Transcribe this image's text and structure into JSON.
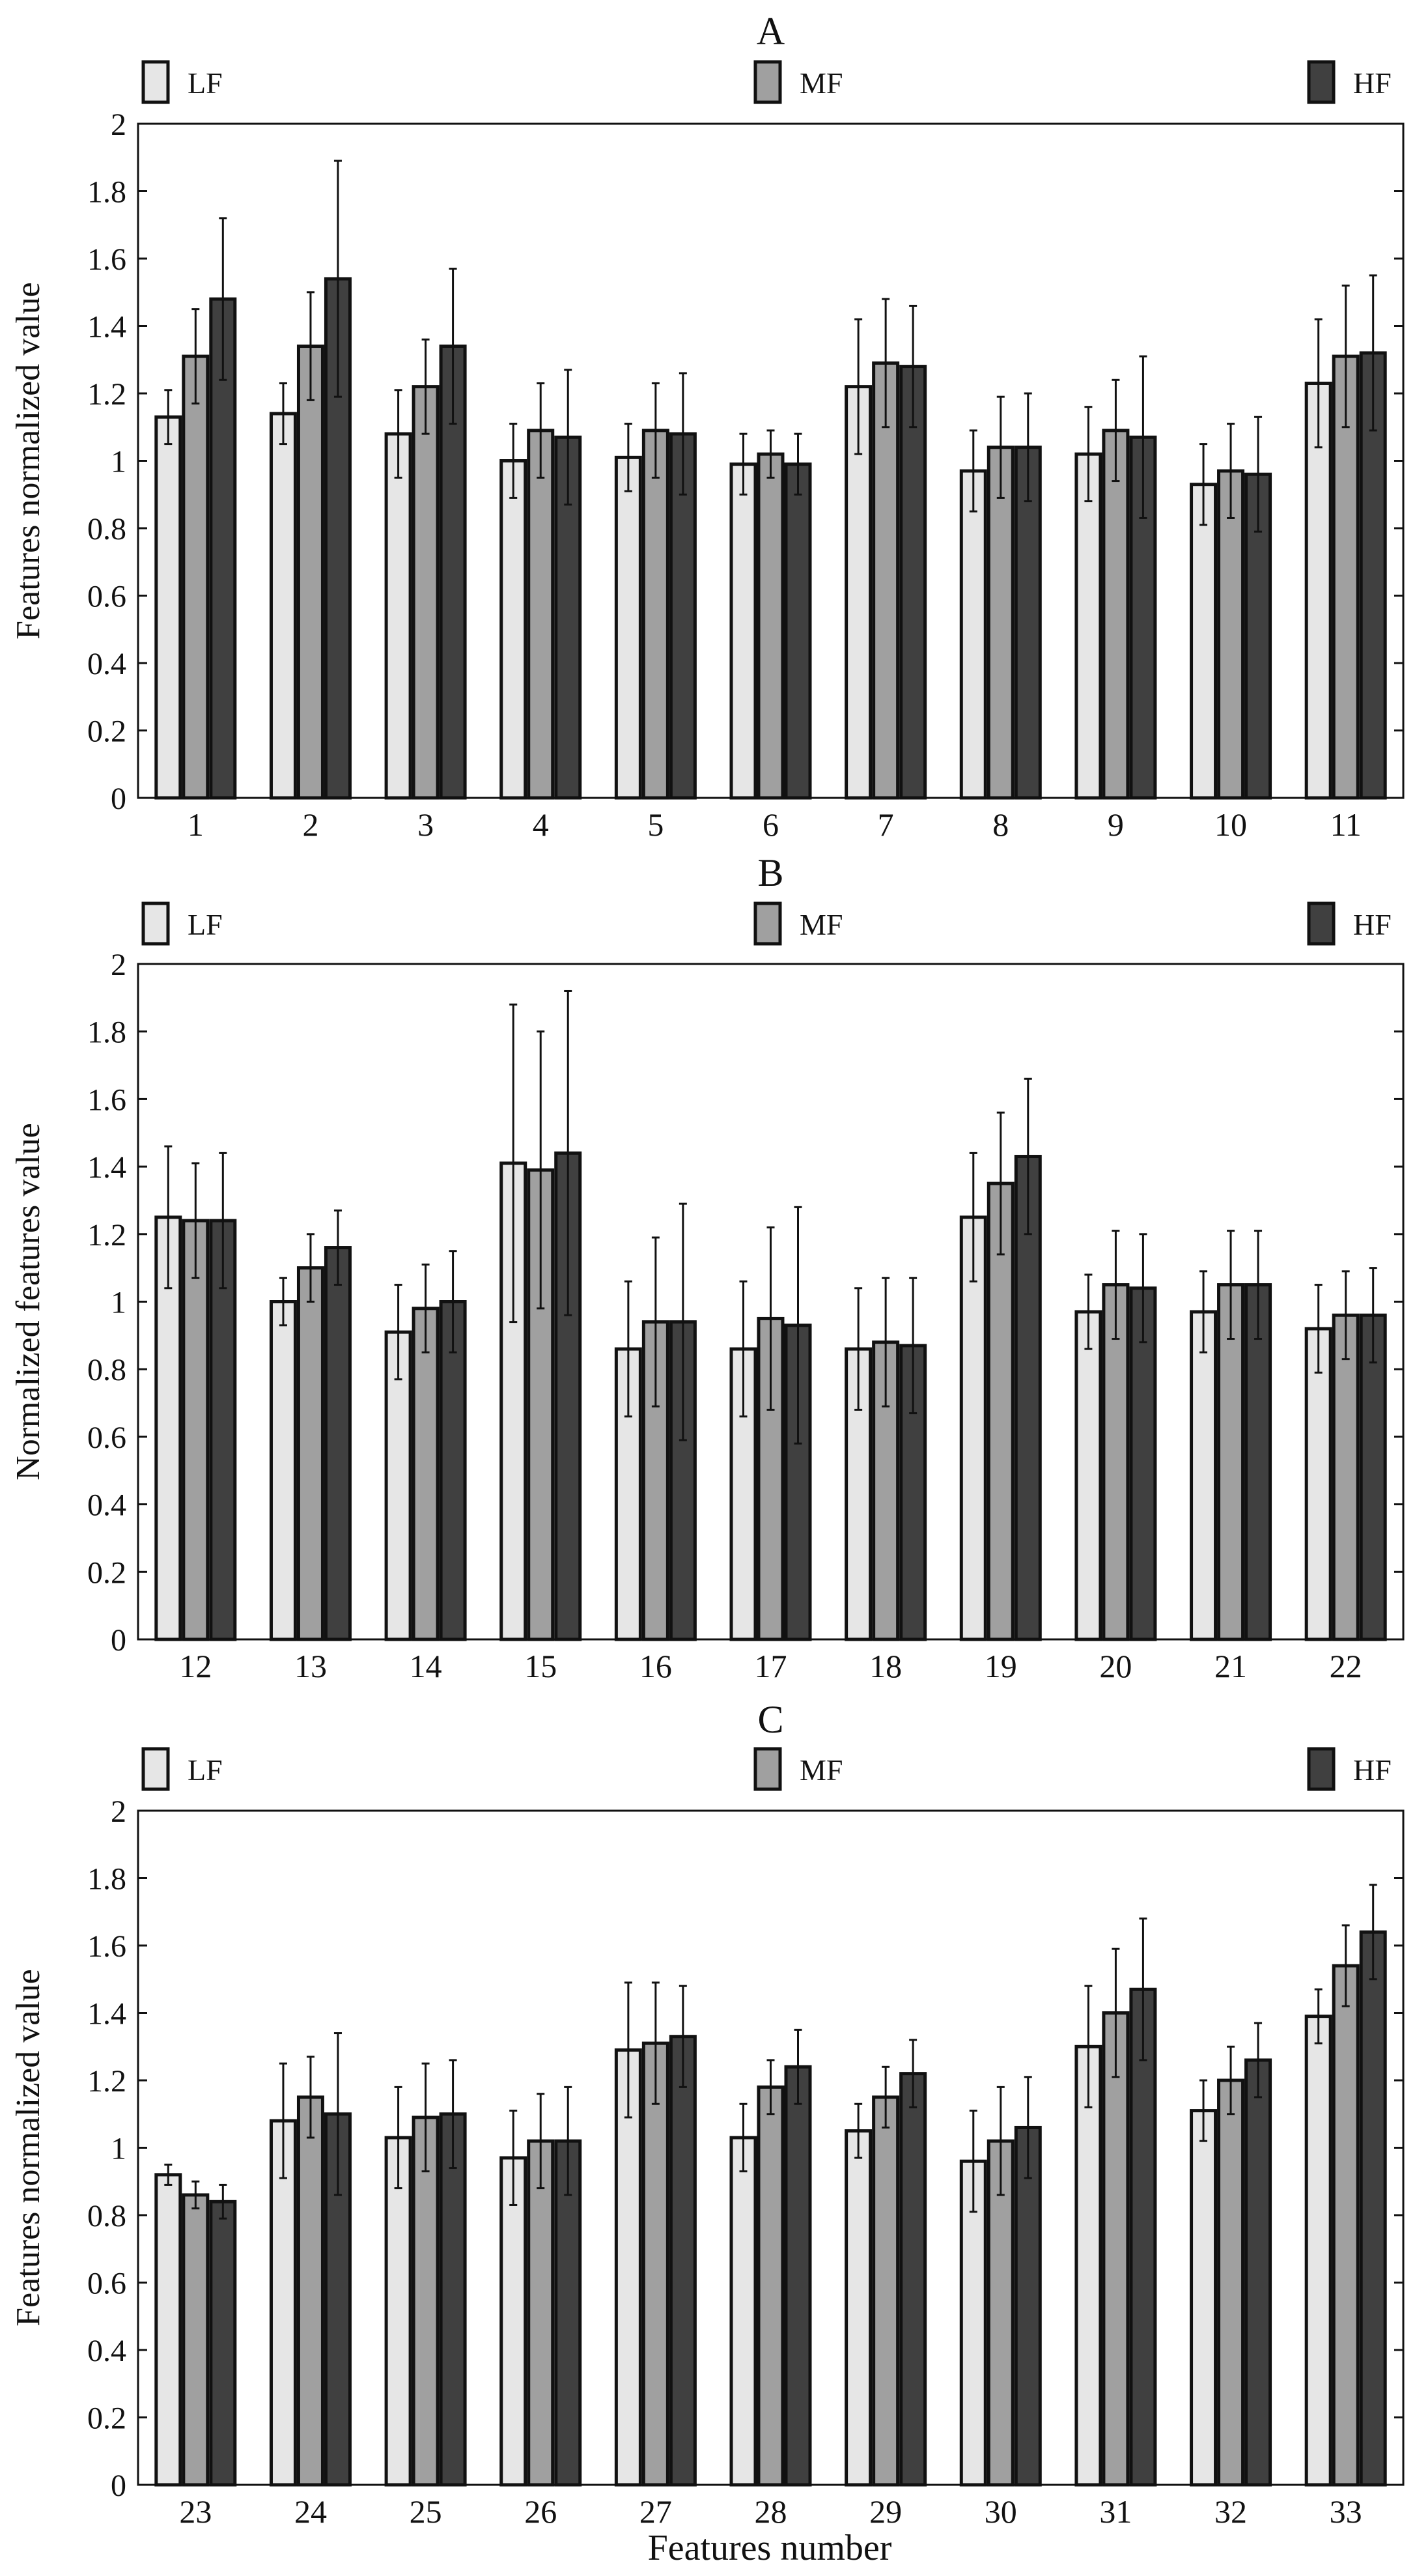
{
  "colors": {
    "LF": "#e6e6e6",
    "MF": "#a0a0a0",
    "HF": "#404040",
    "stroke": "#111111"
  },
  "xlabel_bottom": "Features number",
  "chart_data": [
    {
      "type": "bar",
      "title": "A",
      "ylabel": "Features normalized value",
      "ylim": [
        0,
        2
      ],
      "yticks": [
        "0",
        "0.2",
        "0.4",
        "0.6",
        "0.8",
        "1",
        "1.2",
        "1.4",
        "1.6",
        "1.8",
        "2"
      ],
      "categories": [
        "1",
        "2",
        "3",
        "4",
        "5",
        "6",
        "7",
        "8",
        "9",
        "10",
        "11"
      ],
      "series": [
        {
          "name": "LF",
          "values": [
            1.13,
            1.14,
            1.08,
            1.0,
            1.01,
            0.99,
            1.22,
            0.97,
            1.02,
            0.93,
            1.23
          ],
          "errors": [
            0.08,
            0.09,
            0.13,
            0.11,
            0.1,
            0.09,
            0.2,
            0.12,
            0.14,
            0.12,
            0.19
          ]
        },
        {
          "name": "MF",
          "values": [
            1.31,
            1.34,
            1.22,
            1.09,
            1.09,
            1.02,
            1.29,
            1.04,
            1.09,
            0.97,
            1.31
          ],
          "errors": [
            0.14,
            0.16,
            0.14,
            0.14,
            0.14,
            0.07,
            0.19,
            0.15,
            0.15,
            0.14,
            0.21
          ]
        },
        {
          "name": "HF",
          "values": [
            1.48,
            1.54,
            1.34,
            1.07,
            1.08,
            0.99,
            1.28,
            1.04,
            1.07,
            0.96,
            1.32
          ],
          "errors": [
            0.24,
            0.35,
            0.23,
            0.2,
            0.18,
            0.09,
            0.18,
            0.16,
            0.24,
            0.17,
            0.23
          ]
        }
      ],
      "legend": [
        "LF",
        "MF",
        "HF"
      ]
    },
    {
      "type": "bar",
      "title": "B",
      "ylabel": "Normalized features value",
      "ylim": [
        0,
        2
      ],
      "yticks": [
        "0",
        "0.2",
        "0.4",
        "0.6",
        "0.8",
        "1",
        "1.2",
        "1.4",
        "1.6",
        "1.8",
        "2"
      ],
      "categories": [
        "12",
        "13",
        "14",
        "15",
        "16",
        "17",
        "18",
        "19",
        "20",
        "21",
        "22"
      ],
      "series": [
        {
          "name": "LF",
          "values": [
            1.25,
            1.0,
            0.91,
            1.41,
            0.86,
            0.86,
            0.86,
            1.25,
            0.97,
            0.97,
            0.92
          ],
          "errors": [
            0.21,
            0.07,
            0.14,
            0.47,
            0.2,
            0.2,
            0.18,
            0.19,
            0.11,
            0.12,
            0.13
          ]
        },
        {
          "name": "MF",
          "values": [
            1.24,
            1.1,
            0.98,
            1.39,
            0.94,
            0.95,
            0.88,
            1.35,
            1.05,
            1.05,
            0.96
          ],
          "errors": [
            0.17,
            0.1,
            0.13,
            0.41,
            0.25,
            0.27,
            0.19,
            0.21,
            0.16,
            0.16,
            0.13
          ]
        },
        {
          "name": "HF",
          "values": [
            1.24,
            1.16,
            1.0,
            1.44,
            0.94,
            0.93,
            0.87,
            1.43,
            1.04,
            1.05,
            0.96
          ],
          "errors": [
            0.2,
            0.11,
            0.15,
            0.48,
            0.35,
            0.35,
            0.2,
            0.23,
            0.16,
            0.16,
            0.14
          ]
        }
      ],
      "legend": [
        "LF",
        "MF",
        "HF"
      ]
    },
    {
      "type": "bar",
      "title": "C",
      "ylabel": "Features normalized value",
      "ylim": [
        0,
        2
      ],
      "yticks": [
        "0",
        "0.2",
        "0.4",
        "0.6",
        "0.8",
        "1",
        "1.2",
        "1.4",
        "1.6",
        "1.8",
        "2"
      ],
      "categories": [
        "23",
        "24",
        "25",
        "26",
        "27",
        "28",
        "29",
        "30",
        "31",
        "32",
        "33"
      ],
      "series": [
        {
          "name": "LF",
          "values": [
            0.92,
            1.08,
            1.03,
            0.97,
            1.29,
            1.03,
            1.05,
            0.96,
            1.3,
            1.11,
            1.39
          ],
          "errors": [
            0.03,
            0.17,
            0.15,
            0.14,
            0.2,
            0.1,
            0.08,
            0.15,
            0.18,
            0.09,
            0.08
          ]
        },
        {
          "name": "MF",
          "values": [
            0.86,
            1.15,
            1.09,
            1.02,
            1.31,
            1.18,
            1.15,
            1.02,
            1.4,
            1.2,
            1.54
          ],
          "errors": [
            0.04,
            0.12,
            0.16,
            0.14,
            0.18,
            0.08,
            0.09,
            0.16,
            0.19,
            0.1,
            0.12
          ]
        },
        {
          "name": "HF",
          "values": [
            0.84,
            1.1,
            1.1,
            1.02,
            1.33,
            1.24,
            1.22,
            1.06,
            1.47,
            1.26,
            1.64
          ],
          "errors": [
            0.05,
            0.24,
            0.16,
            0.16,
            0.15,
            0.11,
            0.1,
            0.15,
            0.21,
            0.11,
            0.14
          ]
        }
      ],
      "legend": [
        "LF",
        "MF",
        "HF"
      ]
    }
  ]
}
